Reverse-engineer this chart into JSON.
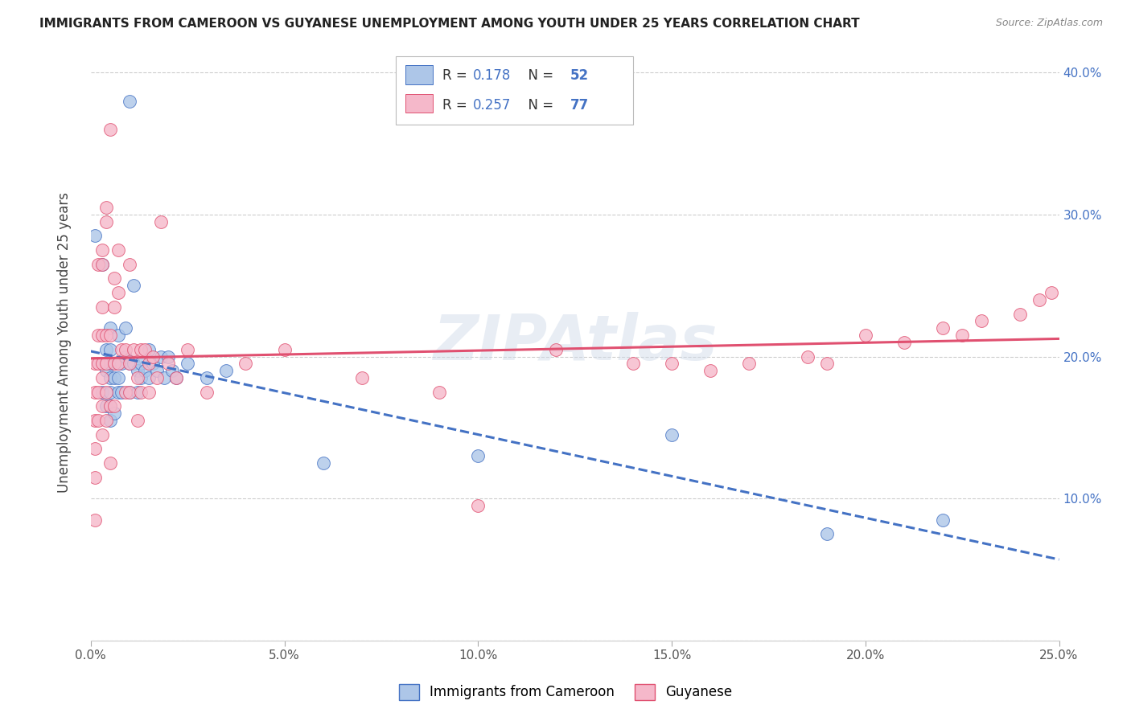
{
  "title": "IMMIGRANTS FROM CAMEROON VS GUYANESE UNEMPLOYMENT AMONG YOUTH UNDER 25 YEARS CORRELATION CHART",
  "source": "Source: ZipAtlas.com",
  "ylabel": "Unemployment Among Youth under 25 years",
  "ytick_labels": [
    "",
    "10.0%",
    "20.0%",
    "30.0%",
    "40.0%"
  ],
  "ytick_values": [
    0.0,
    0.1,
    0.2,
    0.3,
    0.4
  ],
  "xlim": [
    0.0,
    0.25
  ],
  "ylim": [
    0.0,
    0.42
  ],
  "legend_label1": "Immigrants from Cameroon",
  "legend_label2": "Guyanese",
  "R1": 0.178,
  "N1": 52,
  "R2": 0.257,
  "N2": 77,
  "color1": "#adc6e8",
  "color2": "#f5b8ca",
  "line_color1": "#4472c4",
  "line_color2": "#e05070",
  "watermark": "ZIPAtlas",
  "background": "#ffffff",
  "grid_color": "#cccccc",
  "title_color": "#222222",
  "right_tick_color": "#4472c4",
  "scatter1_x": [
    0.001,
    0.003,
    0.003,
    0.003,
    0.004,
    0.004,
    0.004,
    0.005,
    0.005,
    0.005,
    0.005,
    0.005,
    0.005,
    0.005,
    0.006,
    0.006,
    0.006,
    0.007,
    0.007,
    0.007,
    0.007,
    0.008,
    0.008,
    0.009,
    0.009,
    0.01,
    0.01,
    0.01,
    0.011,
    0.011,
    0.012,
    0.012,
    0.013,
    0.013,
    0.014,
    0.015,
    0.015,
    0.016,
    0.017,
    0.018,
    0.019,
    0.02,
    0.021,
    0.022,
    0.025,
    0.03,
    0.035,
    0.06,
    0.1,
    0.15,
    0.19,
    0.22
  ],
  "scatter1_y": [
    0.285,
    0.195,
    0.175,
    0.265,
    0.205,
    0.19,
    0.165,
    0.22,
    0.205,
    0.195,
    0.185,
    0.175,
    0.165,
    0.155,
    0.195,
    0.185,
    0.16,
    0.215,
    0.195,
    0.185,
    0.175,
    0.195,
    0.175,
    0.22,
    0.2,
    0.38,
    0.195,
    0.175,
    0.25,
    0.195,
    0.19,
    0.175,
    0.195,
    0.185,
    0.19,
    0.205,
    0.185,
    0.195,
    0.19,
    0.2,
    0.185,
    0.2,
    0.19,
    0.185,
    0.195,
    0.185,
    0.19,
    0.125,
    0.13,
    0.145,
    0.075,
    0.085
  ],
  "scatter2_x": [
    0.001,
    0.001,
    0.001,
    0.001,
    0.001,
    0.001,
    0.002,
    0.002,
    0.002,
    0.002,
    0.002,
    0.003,
    0.003,
    0.003,
    0.003,
    0.003,
    0.003,
    0.003,
    0.003,
    0.004,
    0.004,
    0.004,
    0.004,
    0.004,
    0.004,
    0.005,
    0.005,
    0.005,
    0.005,
    0.006,
    0.006,
    0.006,
    0.006,
    0.007,
    0.007,
    0.007,
    0.008,
    0.009,
    0.009,
    0.01,
    0.01,
    0.01,
    0.011,
    0.012,
    0.012,
    0.013,
    0.013,
    0.014,
    0.015,
    0.015,
    0.016,
    0.017,
    0.018,
    0.02,
    0.022,
    0.025,
    0.03,
    0.04,
    0.05,
    0.07,
    0.09,
    0.1,
    0.12,
    0.14,
    0.15,
    0.16,
    0.17,
    0.185,
    0.19,
    0.2,
    0.21,
    0.22,
    0.225,
    0.23,
    0.24,
    0.245,
    0.248
  ],
  "scatter2_y": [
    0.195,
    0.175,
    0.155,
    0.135,
    0.115,
    0.085,
    0.265,
    0.215,
    0.195,
    0.175,
    0.155,
    0.275,
    0.265,
    0.235,
    0.215,
    0.195,
    0.185,
    0.165,
    0.145,
    0.305,
    0.295,
    0.215,
    0.195,
    0.175,
    0.155,
    0.36,
    0.215,
    0.165,
    0.125,
    0.255,
    0.235,
    0.195,
    0.165,
    0.275,
    0.245,
    0.195,
    0.205,
    0.205,
    0.175,
    0.265,
    0.195,
    0.175,
    0.205,
    0.185,
    0.155,
    0.205,
    0.175,
    0.205,
    0.195,
    0.175,
    0.2,
    0.185,
    0.295,
    0.195,
    0.185,
    0.205,
    0.175,
    0.195,
    0.205,
    0.185,
    0.175,
    0.095,
    0.205,
    0.195,
    0.195,
    0.19,
    0.195,
    0.2,
    0.195,
    0.215,
    0.21,
    0.22,
    0.215,
    0.225,
    0.23,
    0.24,
    0.245
  ]
}
